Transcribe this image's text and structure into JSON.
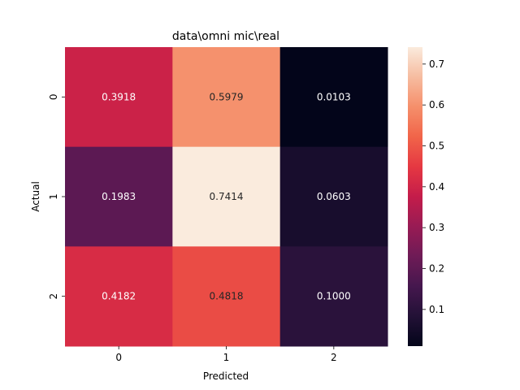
{
  "chart_data": {
    "type": "heatmap",
    "title": "data\\omni mic\\real",
    "xlabel": "Predicted",
    "ylabel": "Actual",
    "x_categories": [
      "0",
      "1",
      "2"
    ],
    "y_categories": [
      "0",
      "1",
      "2"
    ],
    "values": [
      [
        0.3918,
        0.5979,
        0.0103
      ],
      [
        0.1983,
        0.7414,
        0.0603
      ],
      [
        0.4182,
        0.4818,
        0.1
      ]
    ],
    "cell_labels": [
      [
        "0.3918",
        "0.5979",
        "0.0103"
      ],
      [
        "0.1983",
        "0.7414",
        "0.0603"
      ],
      [
        "0.4182",
        "0.4818",
        "0.1000"
      ]
    ],
    "colorbar": {
      "colormap": "rocket",
      "range": [
        0.0103,
        0.7414
      ],
      "ticks": [
        0.1,
        0.2,
        0.3,
        0.4,
        0.5,
        0.6,
        0.7
      ],
      "tick_labels": [
        "0.1",
        "0.2",
        "0.3",
        "0.4",
        "0.5",
        "0.6",
        "0.7"
      ]
    }
  }
}
